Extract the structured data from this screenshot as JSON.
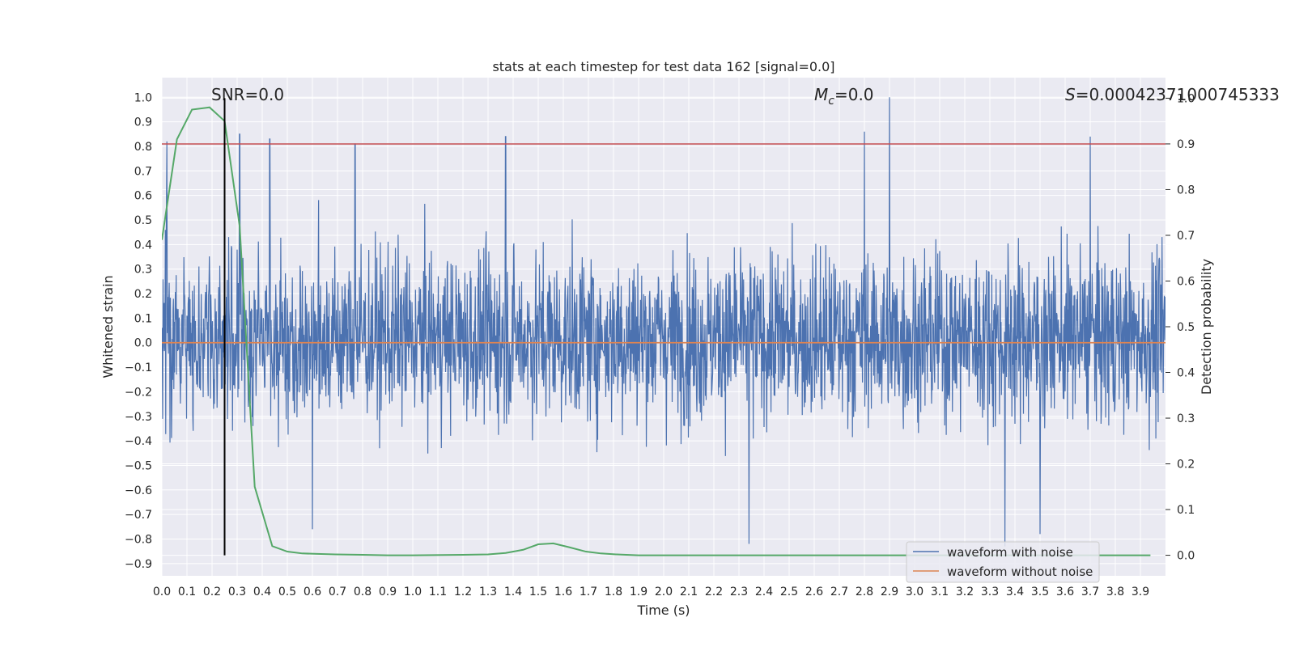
{
  "chart_data": {
    "type": "line",
    "title": "stats at each timestep for test data 162 [signal=0.0]",
    "xlabel": "Time (s)",
    "ylabel_left": "Whitened strain",
    "ylabel_right": "Detection probability",
    "xlim": [
      0.0,
      4.0
    ],
    "ylim_left": [
      -0.95,
      1.08
    ],
    "ylim_right": [
      -0.045,
      1.045
    ],
    "xticks": [
      "0.0",
      "0.1",
      "0.2",
      "0.3",
      "0.4",
      "0.5",
      "0.6",
      "0.7",
      "0.8",
      "0.9",
      "1.0",
      "1.1",
      "1.2",
      "1.3",
      "1.4",
      "1.5",
      "1.6",
      "1.7",
      "1.8",
      "1.9",
      "2.0",
      "2.1",
      "2.2",
      "2.3",
      "2.4",
      "2.5",
      "2.6",
      "2.7",
      "2.8",
      "2.9",
      "3.0",
      "3.1",
      "3.2",
      "3.3",
      "3.4",
      "3.5",
      "3.6",
      "3.7",
      "3.8",
      "3.9"
    ],
    "yticks_left": [
      "1.0",
      "0.9",
      "0.8",
      "0.7",
      "0.6",
      "0.5",
      "0.4",
      "0.3",
      "0.2",
      "0.1",
      "0.0",
      "−0.1",
      "−0.2",
      "−0.3",
      "−0.4",
      "−0.5",
      "−0.6",
      "−0.7",
      "−0.8",
      "−0.9"
    ],
    "yticks_right": [
      "1.0",
      "0.9",
      "0.8",
      "0.7",
      "0.6",
      "0.5",
      "0.4",
      "0.3",
      "0.2",
      "0.1",
      "0.0"
    ],
    "annotations": {
      "snr": "SNR=0.0",
      "mc_symbol": "M",
      "mc_subscript": "c",
      "mc_value": "=0.0",
      "s_symbol": "S",
      "s_value": "=0.00042371000745333"
    },
    "threshold_line": {
      "axis": "right",
      "y": 0.9,
      "color": "#c44e52"
    },
    "marker_line": {
      "x": 0.25,
      "color": "#000000"
    },
    "noise_amplitude_range": [
      -0.9,
      1.0
    ],
    "noise_spikes": [
      {
        "x": 0.02,
        "y": 0.82
      },
      {
        "x": 0.31,
        "y": 0.85
      },
      {
        "x": 0.43,
        "y": 0.83
      },
      {
        "x": 0.77,
        "y": 0.81
      },
      {
        "x": 1.37,
        "y": 0.84
      },
      {
        "x": 2.8,
        "y": 0.86
      },
      {
        "x": 2.9,
        "y": 1.0
      },
      {
        "x": 3.7,
        "y": 0.84
      },
      {
        "x": 2.34,
        "y": -0.82
      },
      {
        "x": 3.36,
        "y": -0.83
      },
      {
        "x": 3.5,
        "y": -0.78
      },
      {
        "x": 0.6,
        "y": -0.76
      }
    ],
    "series": [
      {
        "name": "waveform with noise",
        "axis": "left",
        "color": "#4c72b0"
      },
      {
        "name": "waveform without noise",
        "axis": "left",
        "color": "#dd8452",
        "y": [
          0.0,
          0.0
        ],
        "x": [
          0.0,
          4.0
        ]
      },
      {
        "axis": "right",
        "color": "#55a868",
        "x": [
          0.0,
          0.06,
          0.12,
          0.19,
          0.25,
          0.31,
          0.37,
          0.44,
          0.5,
          0.56,
          0.62,
          0.69,
          0.8,
          0.9,
          1.0,
          1.2,
          1.3,
          1.37,
          1.44,
          1.5,
          1.56,
          1.62,
          1.69,
          1.75,
          1.81,
          1.9,
          2.0,
          2.5,
          3.0,
          3.5,
          3.94
        ],
        "y": [
          0.69,
          0.91,
          0.975,
          0.98,
          0.95,
          0.72,
          0.15,
          0.02,
          0.008,
          0.004,
          0.003,
          0.002,
          0.001,
          0.0,
          0.0,
          0.001,
          0.002,
          0.005,
          0.012,
          0.024,
          0.026,
          0.018,
          0.008,
          0.004,
          0.002,
          0.0,
          0.0,
          0.0,
          0.0,
          0.0,
          0.0
        ]
      }
    ],
    "legend": {
      "location": "lower-right",
      "entries": [
        {
          "label": "waveform with noise",
          "color": "#4c72b0"
        },
        {
          "label": "waveform without noise",
          "color": "#dd8452"
        }
      ]
    },
    "style": {
      "axes_bg": "#eaeaf2",
      "grid": "#ffffff"
    }
  }
}
